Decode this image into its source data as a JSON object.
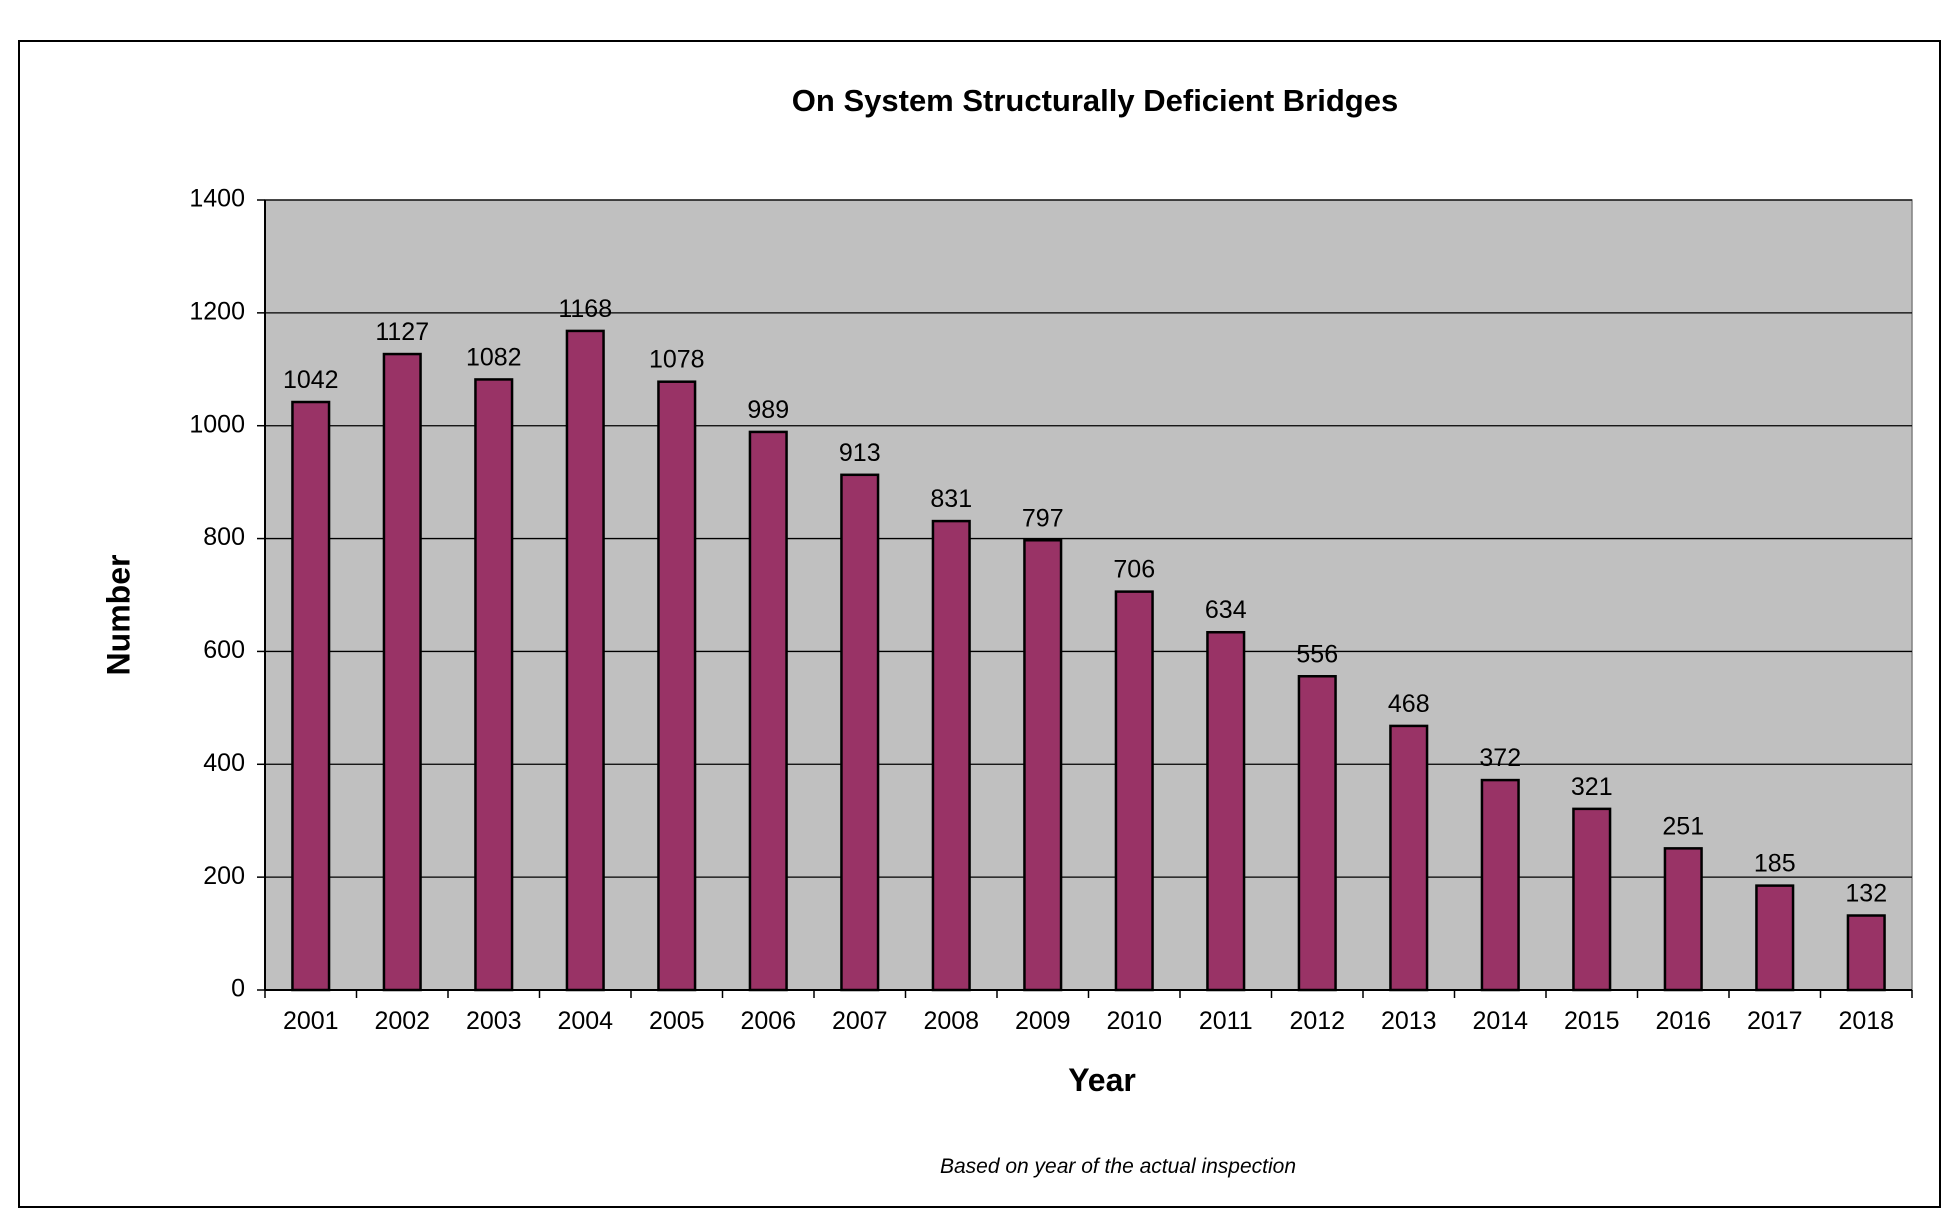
{
  "chart_data": {
    "type": "bar",
    "title": "On System Structurally Deficient Bridges",
    "xlabel": "Year",
    "ylabel": "Number",
    "footnote": "Based on year of the actual inspection",
    "categories": [
      "2001",
      "2002",
      "2003",
      "2004",
      "2005",
      "2006",
      "2007",
      "2008",
      "2009",
      "2010",
      "2011",
      "2012",
      "2013",
      "2014",
      "2015",
      "2016",
      "2017",
      "2018"
    ],
    "values": [
      1042,
      1127,
      1082,
      1168,
      1078,
      989,
      913,
      831,
      797,
      706,
      634,
      556,
      468,
      372,
      321,
      251,
      185,
      132
    ],
    "ylim": [
      0,
      1400
    ],
    "yticks": [
      0,
      200,
      400,
      600,
      800,
      1000,
      1200,
      1400
    ],
    "grid": true,
    "legend": "none",
    "colors": {
      "bar_fill": "#993366",
      "bar_stroke": "#000000",
      "plot_background": "#c0c0c0",
      "gridline": "#000000"
    }
  }
}
